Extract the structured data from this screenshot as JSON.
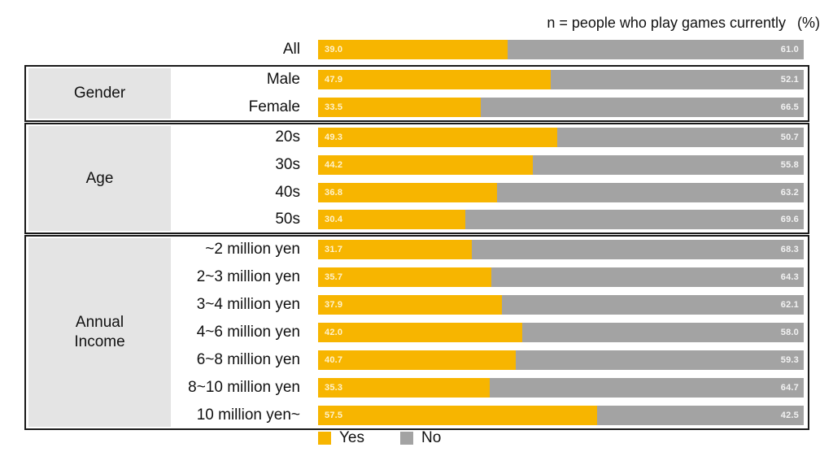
{
  "note": {
    "population": "n = people who play games currently",
    "unit": "(%)"
  },
  "legend": [
    {
      "label": "Yes",
      "color": "#f7b500"
    },
    {
      "label": "No",
      "color": "#a3a3a3"
    }
  ],
  "chart_data": {
    "type": "bar",
    "orientation": "horizontal",
    "stacked": true,
    "percent_stacked": true,
    "xlim": [
      0,
      100
    ],
    "unit": "(%)",
    "series": [
      {
        "name": "Yes",
        "color": "#f7b500"
      },
      {
        "name": "No",
        "color": "#a3a3a3"
      }
    ],
    "groups": [
      {
        "label": "",
        "rows": [
          {
            "label": "All",
            "yes": 39.0,
            "no": 61.0
          }
        ]
      },
      {
        "label": "Gender",
        "rows": [
          {
            "label": "Male",
            "yes": 47.9,
            "no": 52.1
          },
          {
            "label": "Female",
            "yes": 33.5,
            "no": 66.5
          }
        ]
      },
      {
        "label": "Age",
        "rows": [
          {
            "label": "20s",
            "yes": 49.3,
            "no": 50.7
          },
          {
            "label": "30s",
            "yes": 44.2,
            "no": 55.8
          },
          {
            "label": "40s",
            "yes": 36.8,
            "no": 63.2
          },
          {
            "label": "50s",
            "yes": 30.4,
            "no": 69.6
          }
        ]
      },
      {
        "label": "Annual\nIncome",
        "rows": [
          {
            "label": "~2 million yen",
            "yes": 31.7,
            "no": 68.3
          },
          {
            "label": "2~3 million yen",
            "yes": 35.7,
            "no": 64.3
          },
          {
            "label": "3~4 million yen",
            "yes": 37.9,
            "no": 62.1
          },
          {
            "label": "4~6 million yen",
            "yes": 42.0,
            "no": 58.0
          },
          {
            "label": "6~8 million yen",
            "yes": 40.7,
            "no": 59.3
          },
          {
            "label": "8~10 million yen",
            "yes": 35.3,
            "no": 64.7
          },
          {
            "label": "10 million yen~",
            "yes": 57.5,
            "no": 42.5
          }
        ]
      }
    ]
  }
}
